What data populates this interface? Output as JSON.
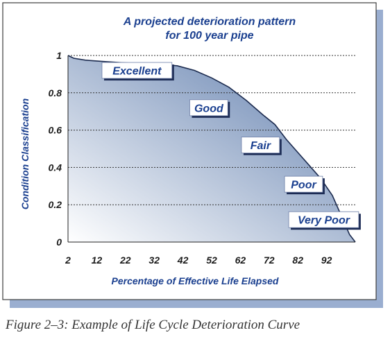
{
  "chart_data": {
    "type": "area",
    "title_lines": [
      "A projected deterioration pattern",
      "for 100 year pipe"
    ],
    "xlabel": "Percentage of Effective Life Elapsed",
    "ylabel": "Condition Classification",
    "xlim": [
      2,
      102
    ],
    "ylim": [
      0,
      1
    ],
    "x_ticks": [
      "2",
      "12",
      "22",
      "32",
      "42",
      "52",
      "62",
      "72",
      "82",
      "92"
    ],
    "y_ticks": [
      "0",
      "0.2",
      "0.4",
      "0.6",
      "0.8",
      "1"
    ],
    "grid": "horizontal dotted",
    "series": [
      {
        "x": [
          2,
          4,
          8,
          14,
          20,
          28,
          36,
          40,
          46,
          52,
          58,
          64,
          70,
          74,
          78,
          82,
          86,
          90,
          94,
          96,
          98,
          100,
          102
        ],
        "y": [
          1.0,
          0.985,
          0.975,
          0.968,
          0.962,
          0.956,
          0.95,
          0.945,
          0.92,
          0.88,
          0.83,
          0.76,
          0.68,
          0.63,
          0.55,
          0.48,
          0.41,
          0.34,
          0.25,
          0.18,
          0.11,
          0.04,
          0.0
        ]
      }
    ],
    "annotations": [
      {
        "text": "Excellent",
        "x": 26,
        "y": 0.92
      },
      {
        "text": "Good",
        "x": 51,
        "y": 0.72
      },
      {
        "text": "Fair",
        "x": 69,
        "y": 0.52
      },
      {
        "text": "Poor",
        "x": 84,
        "y": 0.31
      },
      {
        "text": "Very Poor",
        "x": 91,
        "y": 0.12
      }
    ],
    "colors": {
      "fill_light": "#ffffff",
      "fill_dark": "#5b7aab",
      "line": "#1b2a4e",
      "frame_shadow": "#9aaed0",
      "title": "#1a3f8f",
      "label": "#1a3f8f",
      "box_fill": "#ffffff",
      "box_shadow": "#1c2b54"
    }
  },
  "caption": "Figure 2–3:  Example of Life Cycle Deterioration Curve"
}
